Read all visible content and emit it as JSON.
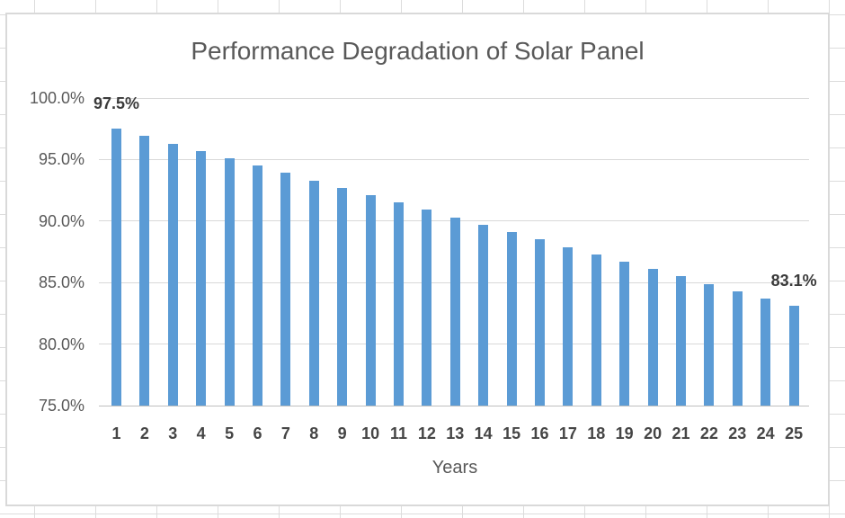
{
  "chart_data": {
    "type": "bar",
    "title": "Performance Degradation of Solar Panel",
    "xlabel": "Years",
    "ylabel": "",
    "categories": [
      "1",
      "2",
      "3",
      "4",
      "5",
      "6",
      "7",
      "8",
      "9",
      "10",
      "11",
      "12",
      "13",
      "14",
      "15",
      "16",
      "17",
      "18",
      "19",
      "20",
      "21",
      "22",
      "23",
      "24",
      "25"
    ],
    "values": [
      97.5,
      96.9,
      96.3,
      95.7,
      95.1,
      94.5,
      93.9,
      93.3,
      92.7,
      92.1,
      91.5,
      90.9,
      90.3,
      89.7,
      89.1,
      88.5,
      87.9,
      87.3,
      86.7,
      86.1,
      85.5,
      84.9,
      84.3,
      83.7,
      83.1
    ],
    "value_unit": "%",
    "ylim": [
      75,
      100
    ],
    "ytick_step": 5,
    "ytick_labels": [
      "100.0%",
      "95.0%",
      "90.0%",
      "85.0%",
      "80.0%",
      "75.0%"
    ],
    "data_labels": [
      {
        "bar": 1,
        "label": "97.5%"
      },
      {
        "bar": 25,
        "label": "83.1%"
      }
    ],
    "legend": "none",
    "grid": true,
    "colors": {
      "bar": "#5b9bd5",
      "gridline": "#d9d9d9",
      "axis_line": "#bfbfbf",
      "title_text": "#595959",
      "ytick_text": "#595959",
      "xtick_text": "#454545",
      "data_label_text": "#3b3b3b",
      "chart_border": "#d9d9d9",
      "sheet_gridline": "#dcdcdc"
    }
  }
}
